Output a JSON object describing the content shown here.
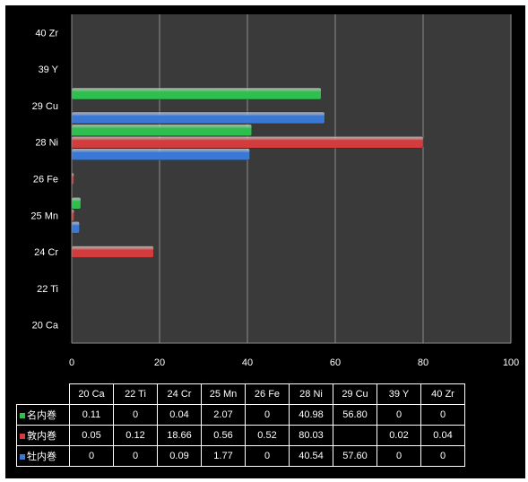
{
  "chart_data": {
    "type": "bar",
    "orientation": "horizontal",
    "categories": [
      "20 Ca",
      "22 Ti",
      "24 Cr",
      "25 Mn",
      "26 Fe",
      "28 Ni",
      "29 Cu",
      "39 Y",
      "40 Zr"
    ],
    "series": [
      {
        "name": "名内巻",
        "color": "#2fbf4f",
        "values": [
          0.11,
          0,
          0.04,
          2.07,
          0,
          40.98,
          56.8,
          0,
          0
        ],
        "labels": [
          "0.11",
          "0",
          "0.04",
          "2.07",
          "0",
          "40.98",
          "56.80",
          "0",
          "0"
        ]
      },
      {
        "name": "敦内巻",
        "color": "#d23c3c",
        "values": [
          0.05,
          0.12,
          18.66,
          0.56,
          0.52,
          80.03,
          null,
          0.02,
          0.04
        ],
        "labels": [
          "0.05",
          "0.12",
          "18.66",
          "0.56",
          "0.52",
          "80.03",
          "",
          "0.02",
          "0.04"
        ]
      },
      {
        "name": "牡内巻",
        "color": "#3a78d6",
        "values": [
          0,
          0,
          0.09,
          1.77,
          0,
          40.54,
          57.6,
          0,
          0
        ],
        "labels": [
          "0",
          "0",
          "0.09",
          "1.77",
          "0",
          "40.54",
          "57.60",
          "0",
          "0"
        ]
      }
    ],
    "xlim": [
      0,
      100
    ],
    "xticks": [
      "0",
      "20",
      "40",
      "60",
      "80",
      "100"
    ],
    "grid": true,
    "legend": "data-table"
  },
  "colors": {
    "background": "#000000",
    "plot_area": "#3a3a3a",
    "gridline": "#8c8c8c",
    "text": "#ffffff"
  }
}
